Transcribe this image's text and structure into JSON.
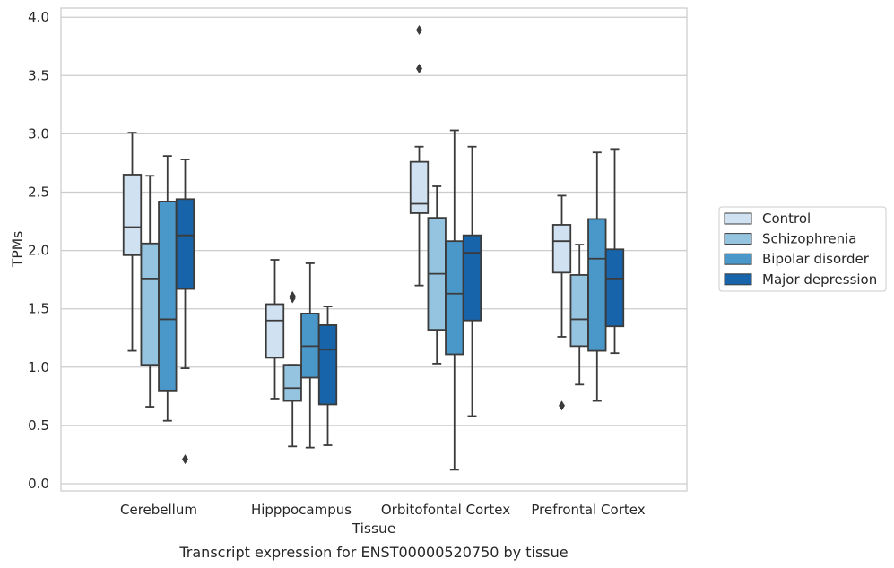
{
  "chart_data": {
    "type": "box",
    "title": "",
    "xlabel": "Tissue",
    "ylabel": "TPMs",
    "caption": "Transcript expression for ENST00000520750 by tissue",
    "ylim": [
      -0.05,
      4.1
    ],
    "yticks": [
      "0.0",
      "0.5",
      "1.0",
      "1.5",
      "2.0",
      "2.5",
      "3.0",
      "3.5",
      "4.0"
    ],
    "grid": true,
    "legend_position": "right",
    "categories": [
      "Cerebellum",
      "Hipppocampus",
      "Orbitofontal Cortex",
      "Prefrontal Cortex"
    ],
    "series": [
      {
        "name": "Control",
        "color": "#d0e1f2",
        "boxes": [
          {
            "whisker_low": 1.14,
            "q1": 1.96,
            "median": 2.2,
            "q3": 2.65,
            "whisker_high": 3.01,
            "outliers": []
          },
          {
            "whisker_low": 0.73,
            "q1": 1.08,
            "median": 1.4,
            "q3": 1.54,
            "whisker_high": 1.92,
            "outliers": []
          },
          {
            "whisker_low": 1.7,
            "q1": 2.32,
            "median": 2.4,
            "q3": 2.76,
            "whisker_high": 2.89,
            "outliers": [
              3.56,
              3.89
            ]
          },
          {
            "whisker_low": 1.26,
            "q1": 1.81,
            "median": 2.08,
            "q3": 2.22,
            "whisker_high": 2.47,
            "outliers": [
              0.67
            ]
          }
        ]
      },
      {
        "name": "Schizophrenia",
        "color": "#94c4df",
        "boxes": [
          {
            "whisker_low": 0.66,
            "q1": 1.02,
            "median": 1.76,
            "q3": 2.06,
            "whisker_high": 2.64,
            "outliers": []
          },
          {
            "whisker_low": 0.32,
            "q1": 0.71,
            "median": 0.82,
            "q3": 1.02,
            "whisker_high": 1.02,
            "outliers": [
              1.59,
              1.61
            ]
          },
          {
            "whisker_low": 1.03,
            "q1": 1.32,
            "median": 1.8,
            "q3": 2.28,
            "whisker_high": 2.55,
            "outliers": []
          },
          {
            "whisker_low": 0.85,
            "q1": 1.18,
            "median": 1.41,
            "q3": 1.79,
            "whisker_high": 2.05,
            "outliers": []
          }
        ]
      },
      {
        "name": "Bipolar disorder",
        "color": "#4a98c9",
        "boxes": [
          {
            "whisker_low": 0.54,
            "q1": 0.8,
            "median": 1.41,
            "q3": 2.42,
            "whisker_high": 2.81,
            "outliers": []
          },
          {
            "whisker_low": 0.31,
            "q1": 0.91,
            "median": 1.18,
            "q3": 1.46,
            "whisker_high": 1.89,
            "outliers": []
          },
          {
            "whisker_low": 0.12,
            "q1": 1.11,
            "median": 1.63,
            "q3": 2.08,
            "whisker_high": 3.03,
            "outliers": []
          },
          {
            "whisker_low": 0.71,
            "q1": 1.14,
            "median": 1.93,
            "q3": 2.27,
            "whisker_high": 2.84,
            "outliers": []
          }
        ]
      },
      {
        "name": "Major depression",
        "color": "#1764ab",
        "boxes": [
          {
            "whisker_low": 0.99,
            "q1": 1.67,
            "median": 2.13,
            "q3": 2.44,
            "whisker_high": 2.78,
            "outliers": [
              0.21
            ]
          },
          {
            "whisker_low": 0.33,
            "q1": 0.68,
            "median": 1.15,
            "q3": 1.36,
            "whisker_high": 1.52,
            "outliers": []
          },
          {
            "whisker_low": 0.58,
            "q1": 1.4,
            "median": 1.98,
            "q3": 2.13,
            "whisker_high": 2.89,
            "outliers": []
          },
          {
            "whisker_low": 1.12,
            "q1": 1.35,
            "median": 1.76,
            "q3": 2.01,
            "whisker_high": 2.87,
            "outliers": []
          }
        ]
      }
    ]
  }
}
